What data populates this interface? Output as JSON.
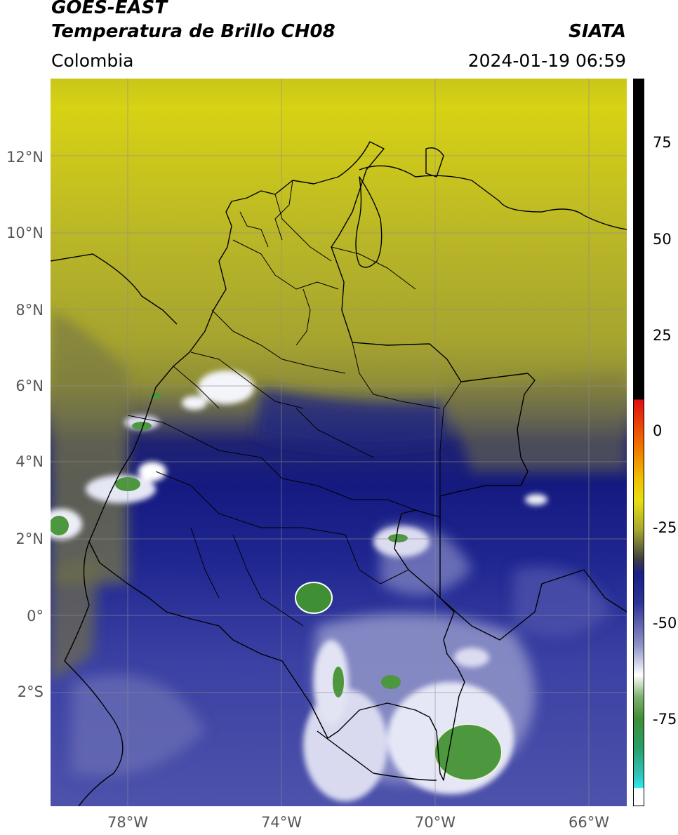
{
  "header": {
    "satellite": "GOES-EAST",
    "product": "Temperatura de Brillo CH08",
    "brand": "SIATA",
    "region": "Colombia",
    "timestamp": "2024-01-19 06:59"
  },
  "map": {
    "lat_ticks": [
      "12°N",
      "10°N",
      "8°N",
      "6°N",
      "4°N",
      "2°N",
      "0°",
      "2°S"
    ],
    "lon_ticks": [
      "78°W",
      "74°W",
      "70°W",
      "66°W"
    ],
    "lon_range": [
      -80,
      -65
    ],
    "lat_range": [
      -4.3,
      14.0
    ],
    "colors": {
      "yellow": "#c4c21f",
      "olive": "#7e7d3c",
      "navy": "#1a1f85",
      "lavender": "#8f93c7",
      "white": "#ffffff",
      "green": "#3f8f34",
      "border": "#000000"
    }
  },
  "colorbar": {
    "tick_labels": [
      "75",
      "50",
      "25",
      "0",
      "-25",
      "-50",
      "-75"
    ],
    "tick_values": [
      75,
      50,
      25,
      0,
      -25,
      -50,
      -75
    ],
    "range": [
      -95,
      90
    ]
  }
}
